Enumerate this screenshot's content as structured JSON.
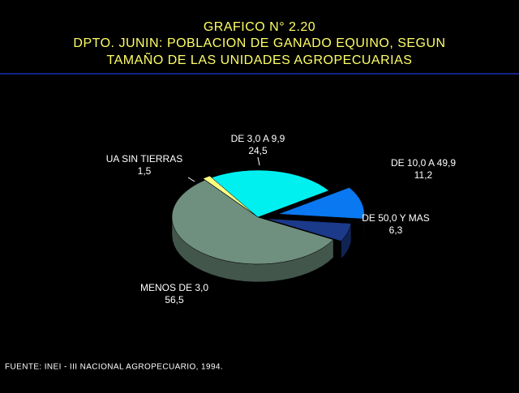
{
  "chart_data": {
    "type": "pie3d",
    "title": [
      "GRAFICO N° 2.20",
      "DPTO. JUNIN: POBLACION DE GANADO EQUINO, SEGUN",
      "TAMAÑO DE LAS UNIDADES AGROPECUARIAS"
    ],
    "categories": [
      "UA SIN TIERRAS",
      "DE 3,0 A 9,9",
      "DE 10,0 A 49,9",
      "DE 50,0 Y MAS",
      "MENOS DE 3,0"
    ],
    "values": [
      1.5,
      24.5,
      11.2,
      6.3,
      56.5
    ],
    "value_labels": [
      "1,5",
      "24,5",
      "11,2",
      "6,3",
      "56,5"
    ],
    "colors": [
      "#ffff80",
      "#00f0f0",
      "#0a78f0",
      "#1c3a8a",
      "#6f8f7f"
    ],
    "source": "FUENTE: INEI - III NACIONAL AGROPECUARIO, 1994."
  }
}
